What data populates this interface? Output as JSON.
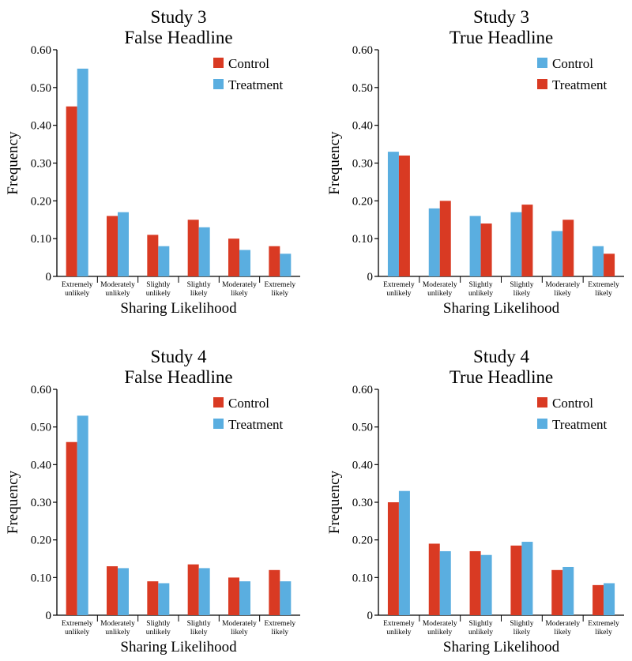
{
  "colors": {
    "red": "#d93a23",
    "blue": "#5aaee0"
  },
  "chart_data": [
    {
      "type": "bar",
      "title": [
        "Study 3",
        "False Headline"
      ],
      "xlabel": "Sharing Likelihood",
      "ylabel": "Frequency",
      "ylim": [
        0,
        0.6
      ],
      "yticks": [
        "0",
        "0.10",
        "0.20",
        "0.30",
        "0.40",
        "0.50",
        "0.60"
      ],
      "legend_position": "top-right",
      "categories": [
        [
          "Extremely",
          "unlikely"
        ],
        [
          "Moderately",
          "unlikely"
        ],
        [
          "Slightly",
          "unlikely"
        ],
        [
          "Slightly",
          "likely"
        ],
        [
          "Moderately",
          "likely"
        ],
        [
          "Extremely",
          "likely"
        ]
      ],
      "series": [
        {
          "name": "Control",
          "color": "#d93a23",
          "values": [
            0.45,
            0.16,
            0.11,
            0.15,
            0.1,
            0.08
          ]
        },
        {
          "name": "Treatment",
          "color": "#5aaee0",
          "values": [
            0.55,
            0.17,
            0.08,
            0.13,
            0.07,
            0.06
          ]
        }
      ]
    },
    {
      "type": "bar",
      "title": [
        "Study 3",
        "True Headline"
      ],
      "xlabel": "Sharing Likelihood",
      "ylabel": "Frequency",
      "ylim": [
        0,
        0.6
      ],
      "yticks": [
        "0",
        "0.10",
        "0.20",
        "0.30",
        "0.40",
        "0.50",
        "0.60"
      ],
      "legend_position": "top-right",
      "categories": [
        [
          "Extremely",
          "unlikely"
        ],
        [
          "Moderately",
          "unlikely"
        ],
        [
          "Slightly",
          "unlikely"
        ],
        [
          "Slightly",
          "likely"
        ],
        [
          "Moderately",
          "likely"
        ],
        [
          "Extremely",
          "likely"
        ]
      ],
      "series": [
        {
          "name": "Control",
          "color": "#5aaee0",
          "values": [
            0.33,
            0.18,
            0.16,
            0.17,
            0.12,
            0.08
          ]
        },
        {
          "name": "Treatment",
          "color": "#d93a23",
          "values": [
            0.32,
            0.2,
            0.14,
            0.19,
            0.15,
            0.06
          ]
        }
      ]
    },
    {
      "type": "bar",
      "title": [
        "Study 4",
        "False Headline"
      ],
      "xlabel": "Sharing Likelihood",
      "ylabel": "Frequency",
      "ylim": [
        0,
        0.6
      ],
      "yticks": [
        "0",
        "0.10",
        "0.20",
        "0.30",
        "0.40",
        "0.50",
        "0.60"
      ],
      "legend_position": "top-right",
      "categories": [
        [
          "Extremely",
          "unlikely"
        ],
        [
          "Moderately",
          "unlikely"
        ],
        [
          "Slightly",
          "unlikely"
        ],
        [
          "Slightly",
          "likely"
        ],
        [
          "Moderately",
          "likely"
        ],
        [
          "Extremely",
          "likely"
        ]
      ],
      "series": [
        {
          "name": "Control",
          "color": "#d93a23",
          "values": [
            0.46,
            0.13,
            0.09,
            0.135,
            0.1,
            0.12
          ]
        },
        {
          "name": "Treatment",
          "color": "#5aaee0",
          "values": [
            0.53,
            0.125,
            0.085,
            0.125,
            0.09,
            0.09
          ]
        }
      ]
    },
    {
      "type": "bar",
      "title": [
        "Study 4",
        "True Headline"
      ],
      "xlabel": "Sharing Likelihood",
      "ylabel": "Frequency",
      "ylim": [
        0,
        0.6
      ],
      "yticks": [
        "0",
        "0.10",
        "0.20",
        "0.30",
        "0.40",
        "0.50",
        "0.60"
      ],
      "legend_position": "top-right",
      "categories": [
        [
          "Extremely",
          "unlikely"
        ],
        [
          "Moderately",
          "unlikely"
        ],
        [
          "Slightly",
          "unlikely"
        ],
        [
          "Slightly",
          "likely"
        ],
        [
          "Moderately",
          "likely"
        ],
        [
          "Extremely",
          "likely"
        ]
      ],
      "series": [
        {
          "name": "Control",
          "color": "#d93a23",
          "values": [
            0.3,
            0.19,
            0.17,
            0.185,
            0.12,
            0.08
          ]
        },
        {
          "name": "Treatment",
          "color": "#5aaee0",
          "values": [
            0.33,
            0.17,
            0.16,
            0.195,
            0.128,
            0.085
          ]
        }
      ]
    }
  ]
}
